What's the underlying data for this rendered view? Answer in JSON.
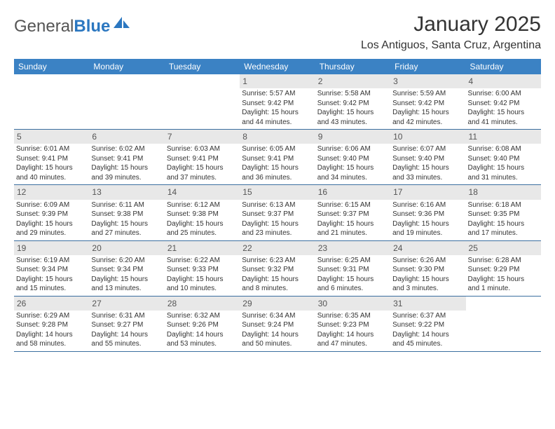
{
  "logo": {
    "text_general": "General",
    "text_blue": "Blue"
  },
  "title": "January 2025",
  "location": "Los Antiguos, Santa Cruz, Argentina",
  "header_bg": "#3b82c4",
  "header_fg": "#ffffff",
  "daynum_bg": "#e8e8e8",
  "rule_color": "#3b6fa0",
  "day_headers": [
    "Sunday",
    "Monday",
    "Tuesday",
    "Wednesday",
    "Thursday",
    "Friday",
    "Saturday"
  ],
  "weeks": [
    [
      {
        "empty": true
      },
      {
        "empty": true
      },
      {
        "empty": true
      },
      {
        "day": "1",
        "sunrise": "Sunrise: 5:57 AM",
        "sunset": "Sunset: 9:42 PM",
        "dl1": "Daylight: 15 hours",
        "dl2": "and 44 minutes."
      },
      {
        "day": "2",
        "sunrise": "Sunrise: 5:58 AM",
        "sunset": "Sunset: 9:42 PM",
        "dl1": "Daylight: 15 hours",
        "dl2": "and 43 minutes."
      },
      {
        "day": "3",
        "sunrise": "Sunrise: 5:59 AM",
        "sunset": "Sunset: 9:42 PM",
        "dl1": "Daylight: 15 hours",
        "dl2": "and 42 minutes."
      },
      {
        "day": "4",
        "sunrise": "Sunrise: 6:00 AM",
        "sunset": "Sunset: 9:42 PM",
        "dl1": "Daylight: 15 hours",
        "dl2": "and 41 minutes."
      }
    ],
    [
      {
        "day": "5",
        "sunrise": "Sunrise: 6:01 AM",
        "sunset": "Sunset: 9:41 PM",
        "dl1": "Daylight: 15 hours",
        "dl2": "and 40 minutes."
      },
      {
        "day": "6",
        "sunrise": "Sunrise: 6:02 AM",
        "sunset": "Sunset: 9:41 PM",
        "dl1": "Daylight: 15 hours",
        "dl2": "and 39 minutes."
      },
      {
        "day": "7",
        "sunrise": "Sunrise: 6:03 AM",
        "sunset": "Sunset: 9:41 PM",
        "dl1": "Daylight: 15 hours",
        "dl2": "and 37 minutes."
      },
      {
        "day": "8",
        "sunrise": "Sunrise: 6:05 AM",
        "sunset": "Sunset: 9:41 PM",
        "dl1": "Daylight: 15 hours",
        "dl2": "and 36 minutes."
      },
      {
        "day": "9",
        "sunrise": "Sunrise: 6:06 AM",
        "sunset": "Sunset: 9:40 PM",
        "dl1": "Daylight: 15 hours",
        "dl2": "and 34 minutes."
      },
      {
        "day": "10",
        "sunrise": "Sunrise: 6:07 AM",
        "sunset": "Sunset: 9:40 PM",
        "dl1": "Daylight: 15 hours",
        "dl2": "and 33 minutes."
      },
      {
        "day": "11",
        "sunrise": "Sunrise: 6:08 AM",
        "sunset": "Sunset: 9:40 PM",
        "dl1": "Daylight: 15 hours",
        "dl2": "and 31 minutes."
      }
    ],
    [
      {
        "day": "12",
        "sunrise": "Sunrise: 6:09 AM",
        "sunset": "Sunset: 9:39 PM",
        "dl1": "Daylight: 15 hours",
        "dl2": "and 29 minutes."
      },
      {
        "day": "13",
        "sunrise": "Sunrise: 6:11 AM",
        "sunset": "Sunset: 9:38 PM",
        "dl1": "Daylight: 15 hours",
        "dl2": "and 27 minutes."
      },
      {
        "day": "14",
        "sunrise": "Sunrise: 6:12 AM",
        "sunset": "Sunset: 9:38 PM",
        "dl1": "Daylight: 15 hours",
        "dl2": "and 25 minutes."
      },
      {
        "day": "15",
        "sunrise": "Sunrise: 6:13 AM",
        "sunset": "Sunset: 9:37 PM",
        "dl1": "Daylight: 15 hours",
        "dl2": "and 23 minutes."
      },
      {
        "day": "16",
        "sunrise": "Sunrise: 6:15 AM",
        "sunset": "Sunset: 9:37 PM",
        "dl1": "Daylight: 15 hours",
        "dl2": "and 21 minutes."
      },
      {
        "day": "17",
        "sunrise": "Sunrise: 6:16 AM",
        "sunset": "Sunset: 9:36 PM",
        "dl1": "Daylight: 15 hours",
        "dl2": "and 19 minutes."
      },
      {
        "day": "18",
        "sunrise": "Sunrise: 6:18 AM",
        "sunset": "Sunset: 9:35 PM",
        "dl1": "Daylight: 15 hours",
        "dl2": "and 17 minutes."
      }
    ],
    [
      {
        "day": "19",
        "sunrise": "Sunrise: 6:19 AM",
        "sunset": "Sunset: 9:34 PM",
        "dl1": "Daylight: 15 hours",
        "dl2": "and 15 minutes."
      },
      {
        "day": "20",
        "sunrise": "Sunrise: 6:20 AM",
        "sunset": "Sunset: 9:34 PM",
        "dl1": "Daylight: 15 hours",
        "dl2": "and 13 minutes."
      },
      {
        "day": "21",
        "sunrise": "Sunrise: 6:22 AM",
        "sunset": "Sunset: 9:33 PM",
        "dl1": "Daylight: 15 hours",
        "dl2": "and 10 minutes."
      },
      {
        "day": "22",
        "sunrise": "Sunrise: 6:23 AM",
        "sunset": "Sunset: 9:32 PM",
        "dl1": "Daylight: 15 hours",
        "dl2": "and 8 minutes."
      },
      {
        "day": "23",
        "sunrise": "Sunrise: 6:25 AM",
        "sunset": "Sunset: 9:31 PM",
        "dl1": "Daylight: 15 hours",
        "dl2": "and 6 minutes."
      },
      {
        "day": "24",
        "sunrise": "Sunrise: 6:26 AM",
        "sunset": "Sunset: 9:30 PM",
        "dl1": "Daylight: 15 hours",
        "dl2": "and 3 minutes."
      },
      {
        "day": "25",
        "sunrise": "Sunrise: 6:28 AM",
        "sunset": "Sunset: 9:29 PM",
        "dl1": "Daylight: 15 hours",
        "dl2": "and 1 minute."
      }
    ],
    [
      {
        "day": "26",
        "sunrise": "Sunrise: 6:29 AM",
        "sunset": "Sunset: 9:28 PM",
        "dl1": "Daylight: 14 hours",
        "dl2": "and 58 minutes."
      },
      {
        "day": "27",
        "sunrise": "Sunrise: 6:31 AM",
        "sunset": "Sunset: 9:27 PM",
        "dl1": "Daylight: 14 hours",
        "dl2": "and 55 minutes."
      },
      {
        "day": "28",
        "sunrise": "Sunrise: 6:32 AM",
        "sunset": "Sunset: 9:26 PM",
        "dl1": "Daylight: 14 hours",
        "dl2": "and 53 minutes."
      },
      {
        "day": "29",
        "sunrise": "Sunrise: 6:34 AM",
        "sunset": "Sunset: 9:24 PM",
        "dl1": "Daylight: 14 hours",
        "dl2": "and 50 minutes."
      },
      {
        "day": "30",
        "sunrise": "Sunrise: 6:35 AM",
        "sunset": "Sunset: 9:23 PM",
        "dl1": "Daylight: 14 hours",
        "dl2": "and 47 minutes."
      },
      {
        "day": "31",
        "sunrise": "Sunrise: 6:37 AM",
        "sunset": "Sunset: 9:22 PM",
        "dl1": "Daylight: 14 hours",
        "dl2": "and 45 minutes."
      },
      {
        "empty": true
      }
    ]
  ]
}
